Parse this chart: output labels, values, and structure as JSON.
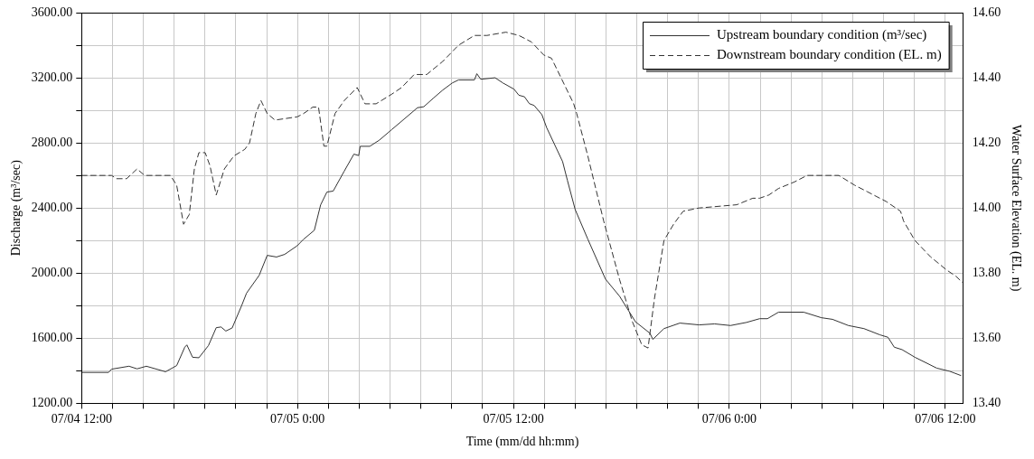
{
  "chart_data": {
    "type": "line",
    "xlabel": "Time (mm/dd hh:mm)",
    "ylabel": "Discharge (m³/sec)",
    "y2label": "Water Surface Elevation (EL. m)",
    "xlim": [
      "--07-04T12:00",
      "--07-06T13:00"
    ],
    "xticks": [
      {
        "value": "--07-04T12:00",
        "label": "07/04 12:00"
      },
      {
        "value": "--07-04T13:43",
        "label": null
      },
      {
        "value": "--07-04T15:26",
        "label": null
      },
      {
        "value": "--07-04T17:09",
        "label": null
      },
      {
        "value": "--07-04T18:51",
        "label": null
      },
      {
        "value": "--07-04T20:34",
        "label": null
      },
      {
        "value": "--07-04T22:17",
        "label": null
      },
      {
        "value": "--07-05T00:00",
        "label": "07/05 0:00"
      },
      {
        "value": "--07-05T01:43",
        "label": null
      },
      {
        "value": "--07-05T03:26",
        "label": null
      },
      {
        "value": "--07-05T05:09",
        "label": null
      },
      {
        "value": "--07-05T06:51",
        "label": null
      },
      {
        "value": "--07-05T08:34",
        "label": null
      },
      {
        "value": "--07-05T10:17",
        "label": null
      },
      {
        "value": "--07-05T12:00",
        "label": "07/05 12:00"
      },
      {
        "value": "--07-05T13:43",
        "label": null
      },
      {
        "value": "--07-05T15:26",
        "label": null
      },
      {
        "value": "--07-05T17:09",
        "label": null
      },
      {
        "value": "--07-05T18:51",
        "label": null
      },
      {
        "value": "--07-05T20:34",
        "label": null
      },
      {
        "value": "--07-05T22:17",
        "label": null
      },
      {
        "value": "--07-06T00:00",
        "label": "07/06 0:00"
      },
      {
        "value": "--07-06T01:43",
        "label": null
      },
      {
        "value": "--07-06T03:26",
        "label": null
      },
      {
        "value": "--07-06T05:09",
        "label": null
      },
      {
        "value": "--07-06T06:51",
        "label": null
      },
      {
        "value": "--07-06T08:34",
        "label": null
      },
      {
        "value": "--07-06T10:17",
        "label": null
      },
      {
        "value": "--07-06T12:00",
        "label": "07/06 12:00"
      }
    ],
    "ylim": [
      1200,
      3600
    ],
    "yticks": [
      {
        "value": 1200,
        "label": "1200.00"
      },
      {
        "value": 1400,
        "label": null
      },
      {
        "value": 1600,
        "label": "1600.00"
      },
      {
        "value": 1800,
        "label": null
      },
      {
        "value": 2000,
        "label": "2000.00"
      },
      {
        "value": 2200,
        "label": null
      },
      {
        "value": 2400,
        "label": "2400.00"
      },
      {
        "value": 2600,
        "label": null
      },
      {
        "value": 2800,
        "label": "2800.00"
      },
      {
        "value": 3000,
        "label": null
      },
      {
        "value": 3200,
        "label": "3200.00"
      },
      {
        "value": 3400,
        "label": null
      },
      {
        "value": 3600,
        "label": "3600.00"
      }
    ],
    "y2lim": [
      13.4,
      14.6
    ],
    "y2ticks": [
      {
        "value": 13.4,
        "label": "13.40"
      },
      {
        "value": 13.5,
        "label": null
      },
      {
        "value": 13.6,
        "label": "13.60"
      },
      {
        "value": 13.7,
        "label": null
      },
      {
        "value": 13.8,
        "label": "13.80"
      },
      {
        "value": 13.9,
        "label": null
      },
      {
        "value": 14.0,
        "label": "14.00"
      },
      {
        "value": 14.1,
        "label": null
      },
      {
        "value": 14.2,
        "label": "14.20"
      },
      {
        "value": 14.3,
        "label": null
      },
      {
        "value": 14.4,
        "label": "14.40"
      },
      {
        "value": 14.5,
        "label": null
      },
      {
        "value": 14.6,
        "label": "14.60"
      }
    ],
    "grid": true,
    "legend": "top right",
    "marker": "none",
    "series": [
      {
        "name": "Upstream boundary condition (m³/sec)",
        "color": "#333333",
        "line_style": "solid",
        "x": [
          "--07-04T12:00",
          "--07-04T13:30",
          "--07-04T13:40",
          "--07-04T14:38",
          "--07-04T15:05",
          "--07-04T15:36",
          "--07-04T16:40",
          "--07-04T17:17",
          "--07-04T17:44",
          "--07-04T17:51",
          "--07-04T18:10",
          "--07-04T18:31",
          "--07-04T19:03",
          "--07-04T19:29",
          "--07-04T19:45",
          "--07-04T20:01",
          "--07-04T20:22",
          "--07-04T20:54",
          "--07-04T21:10",
          "--07-04T21:52",
          "--07-04T22:19",
          "--07-04T22:50",
          "--07-04T23:17",
          "--07-04T23:59",
          "--07-05T00:19",
          "--07-05T00:56",
          "--07-05T01:17",
          "--07-05T01:38",
          "--07-05T01:59",
          "--07-05T02:36",
          "--07-05T03:08",
          "--07-05T03:24",
          "--07-05T03:29",
          "--07-05T04:01",
          "--07-05T04:33",
          "--07-05T05:15",
          "--07-05T05:58",
          "--07-05T06:40",
          "--07-05T07:01",
          "--07-05T07:32",
          "--07-05T08:04",
          "--07-05T08:36",
          "--07-05T08:57",
          "--07-05T09:50",
          "--07-05T09:58",
          "--07-05T10:11",
          "--07-05T10:59",
          "--07-05T11:25",
          "--07-05T12:02",
          "--07-05T12:18",
          "--07-05T12:37",
          "--07-05T12:53",
          "--07-05T13:09",
          "--07-05T13:35",
          "--07-05T13:51",
          "--07-05T14:44",
          "--07-05T15:00",
          "--07-05T15:26",
          "--07-05T16:08",
          "--07-05T17:07",
          "--07-05T17:54",
          "--07-05T18:47",
          "--07-05T19:35",
          "--07-05T19:45",
          "--07-05T20:22",
          "--07-05T21:15",
          "--07-05T22:19",
          "--07-05T23:11",
          "--07-06T00:04",
          "--07-06T00:57",
          "--07-06T01:41",
          "--07-06T02:07",
          "--07-06T02:44",
          "--07-06T04:08",
          "--07-06T05:07",
          "--07-06T05:44",
          "--07-06T06:37",
          "--07-06T07:29",
          "--07-06T08:22",
          "--07-06T08:49",
          "--07-06T09:10",
          "--07-06T09:36",
          "--07-06T10:19",
          "--07-06T11:32",
          "--07-06T12:15",
          "--07-06T12:52"
        ],
        "values": [
          1390,
          1390,
          1410,
          1428,
          1412,
          1428,
          1394,
          1432,
          1545,
          1559,
          1483,
          1480,
          1555,
          1665,
          1669,
          1644,
          1663,
          1802,
          1877,
          1986,
          2109,
          2099,
          2115,
          2168,
          2206,
          2263,
          2419,
          2498,
          2504,
          2627,
          2731,
          2722,
          2779,
          2779,
          2817,
          2883,
          2950,
          3016,
          3022,
          3073,
          3124,
          3168,
          3187,
          3187,
          3225,
          3191,
          3200,
          3168,
          3130,
          3093,
          3083,
          3041,
          3030,
          2973,
          2893,
          2685,
          2570,
          2390,
          2209,
          1963,
          1858,
          1701,
          1631,
          1593,
          1659,
          1693,
          1682,
          1688,
          1678,
          1697,
          1720,
          1720,
          1760,
          1760,
          1726,
          1716,
          1678,
          1659,
          1621,
          1606,
          1545,
          1530,
          1483,
          1416,
          1397,
          1371
        ]
      },
      {
        "name": "Downstream boundary condition (EL. m)",
        "color": "#333333",
        "line_style": "dashed",
        "axis": "y2",
        "x": [
          "--07-04T12:00",
          "--07-04T13:40",
          "--07-04T13:56",
          "--07-04T14:30",
          "--07-04T15:05",
          "--07-04T15:30",
          "--07-04T16:56",
          "--07-04T17:17",
          "--07-04T17:40",
          "--07-04T17:59",
          "--07-04T18:16",
          "--07-04T18:31",
          "--07-04T18:52",
          "--07-04T19:08",
          "--07-04T19:29",
          "--07-04T19:56",
          "--07-04T20:28",
          "--07-04T21:04",
          "--07-04T21:20",
          "--07-04T21:41",
          "--07-04T21:58",
          "--07-04T22:19",
          "--07-04T22:45",
          "--07-04T23:59",
          "--07-05T00:20",
          "--07-05T00:51",
          "--07-05T01:10",
          "--07-05T01:28",
          "--07-05T01:38",
          "--07-05T02:05",
          "--07-05T02:36",
          "--07-05T03:19",
          "--07-05T03:45",
          "--07-05T04:22",
          "--07-05T05:15",
          "--07-05T05:47",
          "--07-05T06:29",
          "--07-05T07:11",
          "--07-05T08:04",
          "--07-05T08:57",
          "--07-05T09:50",
          "--07-05T10:32",
          "--07-05T11:35",
          "--07-05T12:18",
          "--07-05T13:00",
          "--07-05T13:41",
          "--07-05T14:07",
          "--07-05T15:21",
          "--07-05T15:31",
          "--07-05T16:08",
          "--07-05T17:01",
          "--07-05T17:54",
          "--07-05T18:37",
          "--07-05T19:08",
          "--07-05T19:29",
          "--07-05T19:50",
          "--07-05T20:22",
          "--07-05T20:54",
          "--07-05T21:26",
          "--07-05T22:19",
          "--07-06T00:25",
          "--07-06T01:18",
          "--07-06T01:41",
          "--07-06T02:12",
          "--07-06T02:44",
          "--07-06T03:37",
          "--07-06T04:19",
          "--07-06T06:05",
          "--07-06T06:58",
          "--07-06T07:40",
          "--07-06T08:43",
          "--07-06T09:31",
          "--07-06T09:41",
          "--07-06T10:19",
          "--07-06T11:11",
          "--07-06T12:04",
          "--07-06T12:36",
          "--07-06T12:59"
        ],
        "values": [
          14.1,
          14.1,
          14.09,
          14.09,
          14.12,
          14.1,
          14.1,
          14.07,
          13.95,
          13.98,
          14.12,
          14.17,
          14.17,
          14.13,
          14.04,
          14.12,
          14.16,
          14.18,
          14.2,
          14.29,
          14.33,
          14.29,
          14.27,
          14.28,
          14.29,
          14.31,
          14.31,
          14.19,
          14.19,
          14.29,
          14.33,
          14.37,
          14.32,
          14.32,
          14.35,
          14.37,
          14.41,
          14.41,
          14.45,
          14.5,
          14.53,
          14.53,
          14.54,
          14.53,
          14.51,
          14.47,
          14.46,
          14.32,
          14.29,
          14.16,
          13.96,
          13.78,
          13.65,
          13.58,
          13.57,
          13.72,
          13.9,
          13.95,
          13.99,
          14.0,
          14.01,
          14.03,
          14.03,
          14.04,
          14.06,
          14.08,
          14.1,
          14.1,
          14.07,
          14.05,
          14.02,
          13.99,
          13.96,
          13.9,
          13.85,
          13.81,
          13.79,
          13.77
        ]
      }
    ]
  }
}
